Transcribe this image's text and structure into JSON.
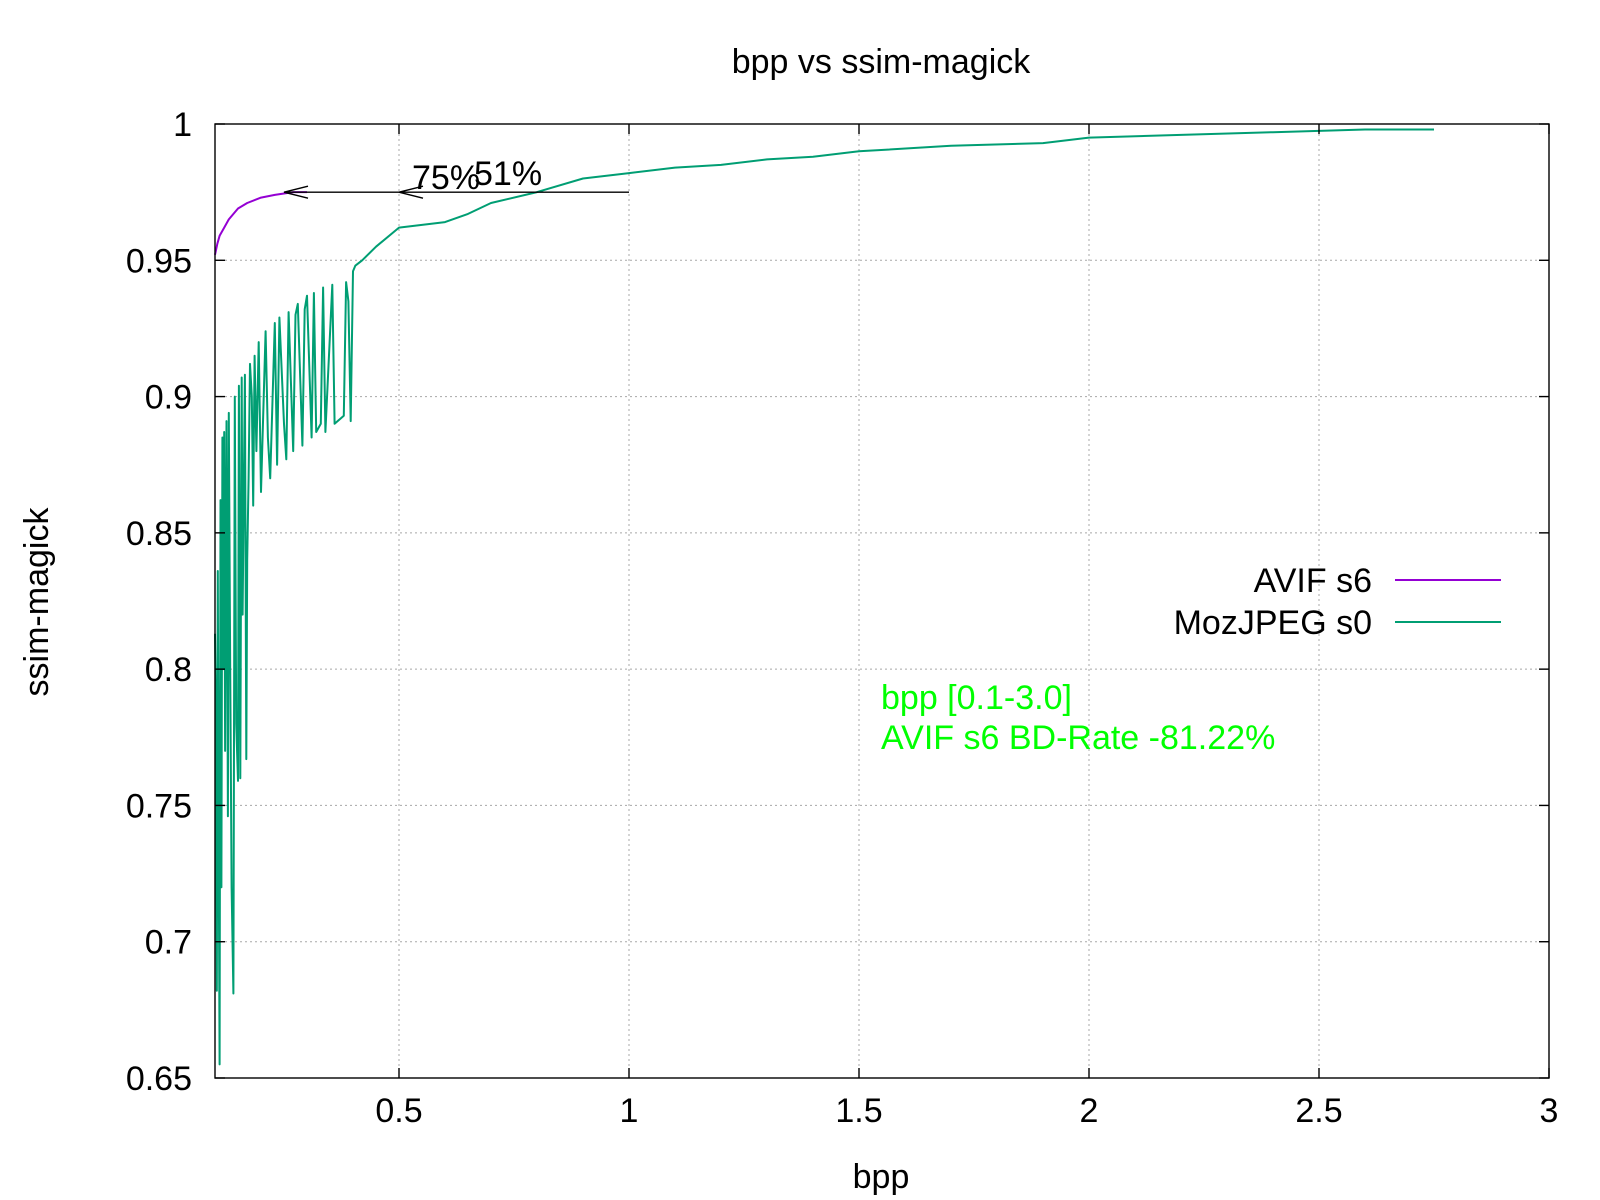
{
  "chart_data": {
    "type": "line",
    "title": "bpp vs ssim-magick",
    "xlabel": "bpp",
    "ylabel": "ssim-magick",
    "xlim": [
      0.1,
      3.0
    ],
    "ylim": [
      0.65,
      1.0
    ],
    "x_ticks": [
      "0.5",
      "1",
      "1.5",
      "2",
      "2.5",
      "3"
    ],
    "y_ticks": [
      "0.65",
      "0.7",
      "0.75",
      "0.8",
      "0.85",
      "0.9",
      "0.95",
      "1"
    ],
    "x_tick_values": [
      0.5,
      1,
      1.5,
      2,
      2.5,
      3
    ],
    "y_tick_values": [
      0.65,
      0.7,
      0.75,
      0.8,
      0.85,
      0.9,
      0.95,
      1.0
    ],
    "grid": true,
    "legend_position": "right",
    "series": [
      {
        "name": "AVIF s6",
        "color": "#9400d3",
        "x": [
          0.1,
          0.105,
          0.11,
          0.12,
          0.13,
          0.15,
          0.17,
          0.2,
          0.23,
          0.27,
          0.3
        ],
        "y": [
          0.952,
          0.956,
          0.959,
          0.962,
          0.965,
          0.969,
          0.971,
          0.973,
          0.974,
          0.975,
          0.975
        ]
      },
      {
        "name": "MozJPEG s0",
        "color": "#009e73",
        "x": [
          0.1,
          0.102,
          0.104,
          0.106,
          0.108,
          0.11,
          0.112,
          0.114,
          0.116,
          0.118,
          0.12,
          0.122,
          0.125,
          0.128,
          0.13,
          0.133,
          0.136,
          0.14,
          0.143,
          0.146,
          0.15,
          0.152,
          0.155,
          0.158,
          0.16,
          0.165,
          0.168,
          0.17,
          0.173,
          0.176,
          0.18,
          0.183,
          0.186,
          0.19,
          0.195,
          0.2,
          0.21,
          0.215,
          0.22,
          0.23,
          0.235,
          0.24,
          0.25,
          0.255,
          0.26,
          0.27,
          0.275,
          0.28,
          0.29,
          0.295,
          0.3,
          0.31,
          0.315,
          0.32,
          0.33,
          0.335,
          0.34,
          0.355,
          0.36,
          0.38,
          0.385,
          0.39,
          0.395,
          0.4,
          0.405,
          0.42,
          0.45,
          0.5,
          0.6,
          0.65,
          0.7,
          0.8,
          0.9,
          1.0,
          1.1,
          1.2,
          1.3,
          1.4,
          1.5,
          1.7,
          1.9,
          2.0,
          2.2,
          2.4,
          2.6,
          2.75
        ],
        "y": [
          0.813,
          0.785,
          0.682,
          0.836,
          0.734,
          0.655,
          0.862,
          0.72,
          0.885,
          0.8,
          0.887,
          0.77,
          0.891,
          0.746,
          0.894,
          0.8,
          0.72,
          0.681,
          0.9,
          0.78,
          0.759,
          0.904,
          0.76,
          0.907,
          0.82,
          0.908,
          0.767,
          0.84,
          0.87,
          0.912,
          0.9,
          0.86,
          0.915,
          0.88,
          0.92,
          0.865,
          0.924,
          0.885,
          0.87,
          0.927,
          0.875,
          0.929,
          0.89,
          0.877,
          0.931,
          0.88,
          0.93,
          0.934,
          0.882,
          0.932,
          0.937,
          0.885,
          0.938,
          0.887,
          0.89,
          0.94,
          0.887,
          0.941,
          0.89,
          0.893,
          0.942,
          0.935,
          0.891,
          0.946,
          0.948,
          0.95,
          0.955,
          0.962,
          0.964,
          0.967,
          0.971,
          0.975,
          0.98,
          0.982,
          0.984,
          0.985,
          0.987,
          0.988,
          0.99,
          0.992,
          0.993,
          0.995,
          0.996,
          0.997,
          0.998,
          0.998
        ]
      }
    ],
    "annotations": {
      "arrows": [
        {
          "label": "75%",
          "x_from": 0.5,
          "x_to": 0.25,
          "y": 0.975
        },
        {
          "label": "51%",
          "x_from": 1.0,
          "x_to": 0.5,
          "y": 0.975
        }
      ],
      "text_lines": [
        "bpp [0.1-3.0]",
        "AVIF s6 BD-Rate -81.22%"
      ],
      "text_color": "#00ff00"
    }
  }
}
